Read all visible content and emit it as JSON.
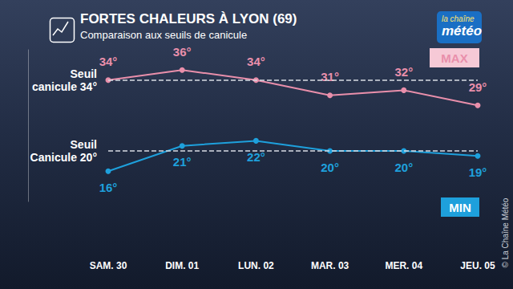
{
  "chart_data": {
    "type": "line",
    "title": "FORTES CHALEURS À LYON (69)",
    "subtitle": "Comparaison aux seuils de canicule",
    "categories": [
      "SAM. 30",
      "DIM. 01",
      "LUN. 02",
      "MAR. 03",
      "MER. 04",
      "JEU. 05"
    ],
    "series": [
      {
        "name": "MAX",
        "color": "#e98fab",
        "values": [
          34,
          36,
          34,
          31,
          32,
          29
        ],
        "value_labels": [
          "34°",
          "36°",
          "34°",
          "31°",
          "32°",
          "29°"
        ]
      },
      {
        "name": "MIN",
        "color": "#1ea0dc",
        "values": [
          16,
          21,
          22,
          20,
          20,
          19
        ],
        "value_labels": [
          "16°",
          "21°",
          "22°",
          "20°",
          "20°",
          "19°"
        ]
      }
    ],
    "annotations": [
      {
        "text": "Seuil canicule 34°",
        "y": 34,
        "series": "MAX"
      },
      {
        "text": "Seuil Canicule 20°",
        "y": 20,
        "series": "MIN"
      }
    ],
    "logo": "la chaîne météo",
    "credit": "© La Chaîne Météo",
    "ylim": [
      10,
      40
    ],
    "grid": false,
    "data_labels": true,
    "tick_labels": "x"
  }
}
